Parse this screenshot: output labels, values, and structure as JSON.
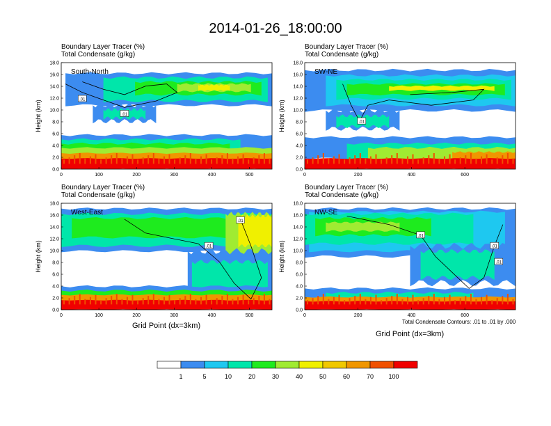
{
  "title": "2014-01-26_18:00:00",
  "label_line1": "Boundary Layer Tracer   (%)",
  "label_line2": "Total Condensate   (g/kg)",
  "y_axis_title": "Height (km)",
  "x_axis_title": "Grid Point (dx=3km)",
  "footnote": "Total Condensate Contours: .01 to .01 by .000",
  "chart_data": [
    {
      "type": "heatmap",
      "cross_section": "South-North",
      "x_ticks": [
        "0",
        "100",
        "200",
        "300",
        "400",
        "500"
      ],
      "x_range": [
        0,
        560
      ],
      "y_ticks": [
        "0.0",
        "2.0",
        "4.0",
        "6.0",
        "8.0",
        "10.0",
        "12.0",
        "14.0",
        "16.0",
        "18.0"
      ],
      "y_range": [
        0,
        18
      ],
      "contour_labels": [
        ".01",
        ".01"
      ]
    },
    {
      "type": "heatmap",
      "cross_section": "SW-NE",
      "x_ticks": [
        "0",
        "200",
        "400",
        "600"
      ],
      "x_range": [
        0,
        790
      ],
      "y_ticks": [
        "0.0",
        "2.0",
        "4.0",
        "6.0",
        "8.0",
        "10.0",
        "12.0",
        "14.0",
        "16.0",
        "18.0"
      ],
      "y_range": [
        0,
        18
      ],
      "contour_labels": [
        ".01"
      ]
    },
    {
      "type": "heatmap",
      "cross_section": "West-East",
      "x_ticks": [
        "0",
        "100",
        "200",
        "300",
        "400",
        "500"
      ],
      "x_range": [
        0,
        560
      ],
      "y_ticks": [
        "0.0",
        "2.0",
        "4.0",
        "6.0",
        "8.0",
        "10.0",
        "12.0",
        "14.0",
        "16.0",
        "18.0"
      ],
      "y_range": [
        0,
        18
      ],
      "contour_labels": [
        ".01",
        ".01"
      ]
    },
    {
      "type": "heatmap",
      "cross_section": "NW-SE",
      "x_ticks": [
        "0",
        "200",
        "400",
        "600"
      ],
      "x_range": [
        0,
        790
      ],
      "y_ticks": [
        "0.0",
        "2.0",
        "4.0",
        "6.0",
        "8.0",
        "10.0",
        "12.0",
        "14.0",
        "16.0",
        "18.0"
      ],
      "y_range": [
        0,
        18
      ],
      "contour_labels": [
        ".01",
        ".01",
        ".01"
      ]
    }
  ],
  "colorbar": {
    "labels": [
      "1",
      "5",
      "10",
      "20",
      "30",
      "40",
      "50",
      "60",
      "70",
      "100"
    ],
    "colors": [
      "#ffffff",
      "#3c8cf0",
      "#1ec8f0",
      "#00e6aa",
      "#1eeb1e",
      "#a0eb32",
      "#f0f000",
      "#f0c800",
      "#f09600",
      "#f05000",
      "#f00000"
    ]
  }
}
